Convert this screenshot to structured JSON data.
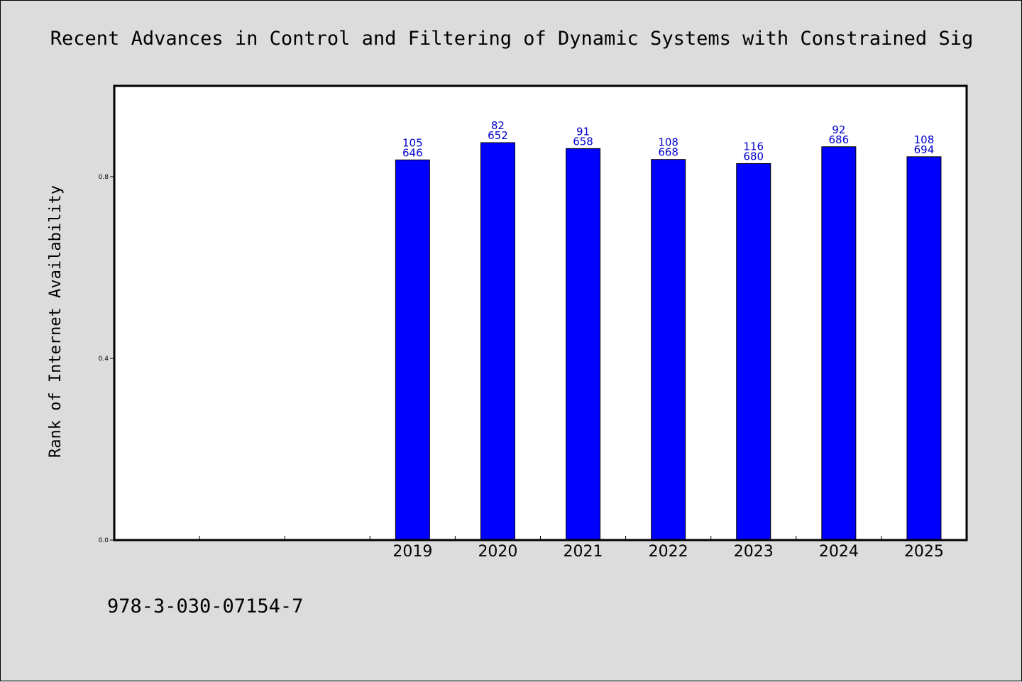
{
  "colors": {
    "background": "#dcdcdc",
    "plot_area": "#ffffff",
    "bar_fill": "#0000ff",
    "label": "#0000cc",
    "axis": "#000000"
  },
  "footer": {
    "isbn": "978-3-030-07154-7"
  },
  "chart_data": {
    "type": "bar",
    "title": "Recent Advances in Control and Filtering of Dynamic Systems with Constrained Sig",
    "xlabel": "",
    "ylabel": "Rank of Internet Availability",
    "ylim": [
      0,
      1.0
    ],
    "yticks": [
      "0.0",
      "0.4",
      "0.8"
    ],
    "ytick_values": [
      0.0,
      0.4,
      0.8
    ],
    "grid": false,
    "legend": "none",
    "slots": 10,
    "categories": [
      "",
      "",
      "",
      "2019",
      "2020",
      "2021",
      "2022",
      "2023",
      "2024",
      "2025"
    ],
    "values": [
      null,
      null,
      null,
      0.837,
      0.875,
      0.862,
      0.838,
      0.829,
      0.866,
      0.844
    ],
    "label_top": [
      "",
      "",
      "",
      "105",
      "82",
      "91",
      "108",
      "116",
      "92",
      "108"
    ],
    "label_bottom": [
      "",
      "",
      "",
      "646",
      "652",
      "658",
      "668",
      "680",
      "686",
      "694"
    ]
  }
}
